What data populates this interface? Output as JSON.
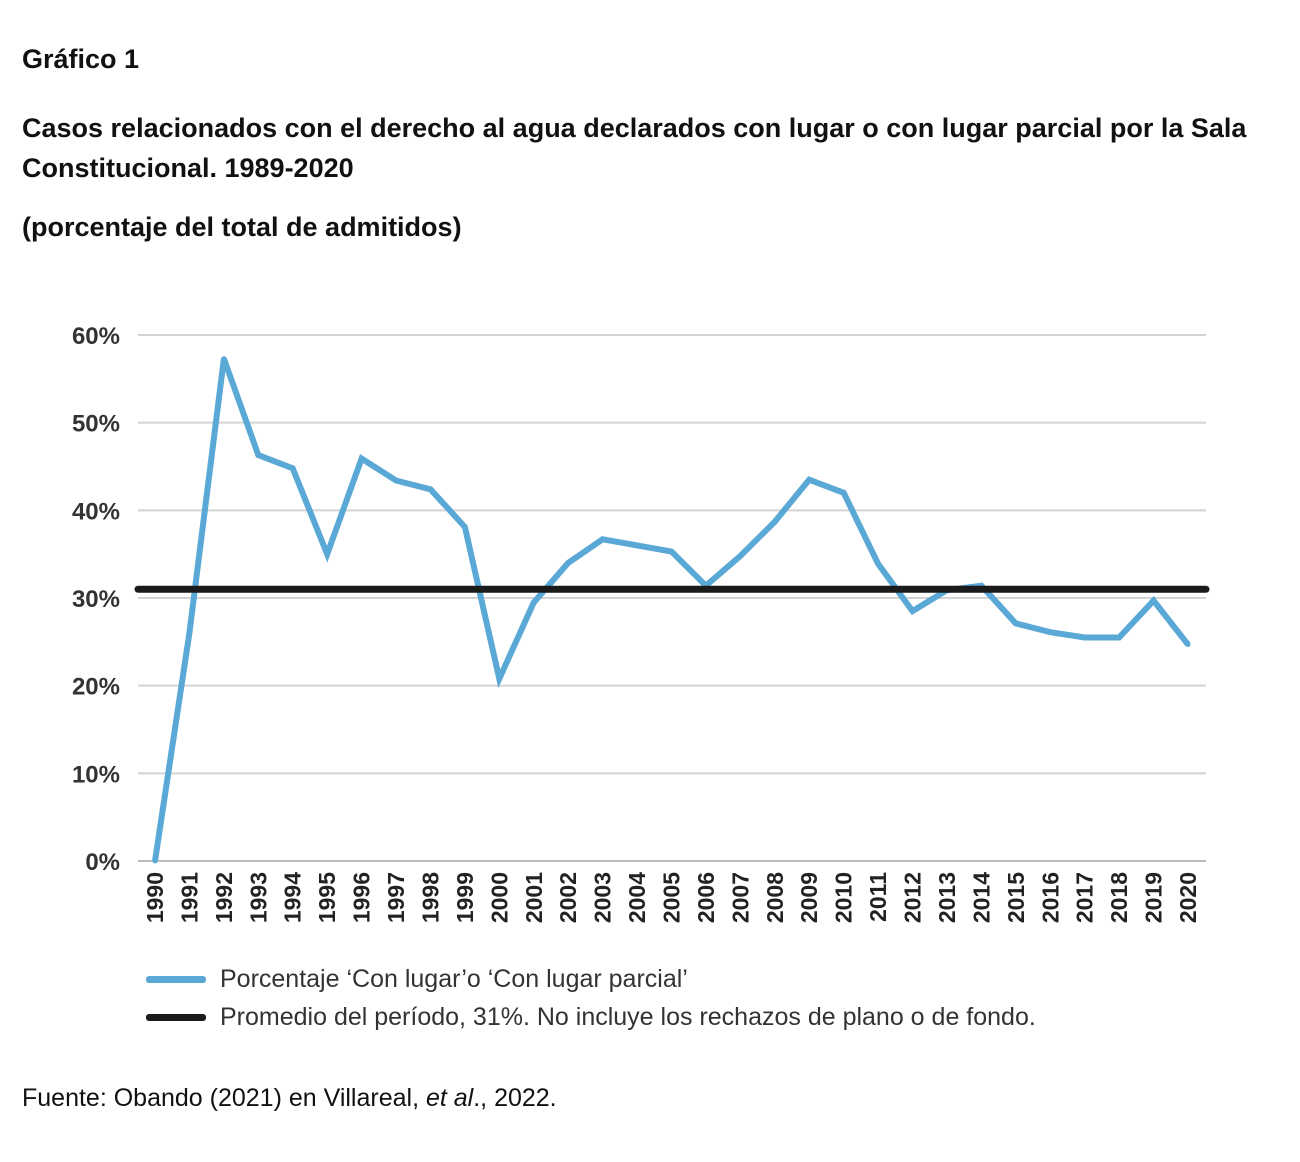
{
  "figure": {
    "label": "Gráfico 1",
    "title": "Casos relacionados con el derecho al agua declarados con lugar o con lugar parcial por la Sala Constitucional. 1989-2020",
    "subtitle": "(porcentaje del total de admitidos)",
    "source_prefix": "Fuente: Obando (2021) en Villareal, ",
    "source_italic": "et al",
    "source_suffix": "., 2022."
  },
  "chart_data": {
    "type": "line",
    "title": "Casos relacionados con el derecho al agua declarados con lugar o con lugar parcial por la Sala Constitucional. 1989-2020",
    "xlabel": "",
    "ylabel": "",
    "ylim": [
      0,
      60
    ],
    "y_ticks": [
      0,
      10,
      20,
      30,
      40,
      50,
      60
    ],
    "y_tick_labels": [
      "0%",
      "10%",
      "20%",
      "30%",
      "40%",
      "50%",
      "60%"
    ],
    "grid": true,
    "legend_position": "bottom-left",
    "categories": [
      "1990",
      "1991",
      "1992",
      "1993",
      "1994",
      "1995",
      "1996",
      "1997",
      "1998",
      "1999",
      "2000",
      "2001",
      "2002",
      "2003",
      "2004",
      "2005",
      "2006",
      "2007",
      "2008",
      "2009",
      "2010",
      "2011",
      "2012",
      "2013",
      "2014",
      "2015",
      "2016",
      "2017",
      "2018",
      "2019",
      "2020"
    ],
    "series": [
      {
        "name": "Porcentaje ‘Con lugar’o ‘Con lugar parcial’",
        "color": "#5aa8d6",
        "values": [
          0,
          26,
          57.3,
          46.3,
          44.8,
          35,
          45.9,
          43.4,
          42.4,
          38.1,
          20.8,
          29.5,
          34,
          36.7,
          36,
          35.3,
          31.4,
          34.8,
          38.7,
          43.5,
          42,
          33.9,
          28.5,
          30.9,
          31.4,
          27.1,
          26.1,
          25.5,
          25.5,
          29.7,
          24.7
        ]
      },
      {
        "name": "Promedio del período, 31%. No incluye los rechazos de plano o de fondo.",
        "color": "#1b1b1b",
        "constant": 31
      }
    ]
  }
}
